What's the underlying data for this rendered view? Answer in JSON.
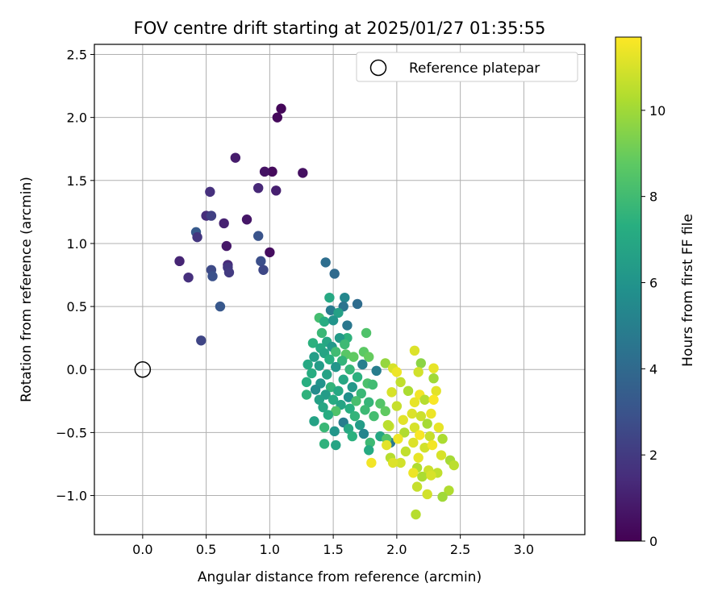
{
  "chart_data": {
    "type": "scatter",
    "title": "FOV centre drift starting at 2025/01/27 01:35:55",
    "xlabel": "Angular distance from reference (arcmin)",
    "ylabel": "Rotation from reference (arcmin)",
    "xlim": [
      -0.38,
      3.48
    ],
    "ylim": [
      -1.31,
      2.58
    ],
    "xticks": [
      "0.0",
      "0.5",
      "1.0",
      "1.5",
      "2.0",
      "2.5",
      "3.0"
    ],
    "yticks": [
      "−1.0",
      "−0.5",
      "0.0",
      "0.5",
      "1.0",
      "1.5",
      "2.0",
      "2.5"
    ],
    "grid": true,
    "legend": {
      "position": "top-right",
      "label": "Reference platepar"
    },
    "reference_point": {
      "x": 0.0,
      "y": 0.0
    },
    "colorbar": {
      "label": "Hours from first FF file",
      "range": [
        0,
        11.7
      ],
      "ticks": [
        "0",
        "2",
        "4",
        "6",
        "8",
        "10"
      ],
      "colormap": "viridis"
    },
    "points": [
      {
        "x": 1.09,
        "y": 2.07,
        "c": 0.2
      },
      {
        "x": 1.06,
        "y": 2.0,
        "c": 0.25
      },
      {
        "x": 1.02,
        "y": 1.57,
        "c": 0.3
      },
      {
        "x": 0.96,
        "y": 1.57,
        "c": 0.6
      },
      {
        "x": 1.26,
        "y": 1.56,
        "c": 0.5
      },
      {
        "x": 0.73,
        "y": 1.68,
        "c": 0.9
      },
      {
        "x": 0.91,
        "y": 1.44,
        "c": 1.3
      },
      {
        "x": 1.05,
        "y": 1.42,
        "c": 1.0
      },
      {
        "x": 0.53,
        "y": 1.41,
        "c": 1.6
      },
      {
        "x": 0.5,
        "y": 1.22,
        "c": 1.5
      },
      {
        "x": 0.54,
        "y": 1.22,
        "c": 2.2
      },
      {
        "x": 0.64,
        "y": 1.16,
        "c": 1.1
      },
      {
        "x": 0.82,
        "y": 1.19,
        "c": 0.7
      },
      {
        "x": 0.42,
        "y": 1.09,
        "c": 3.3
      },
      {
        "x": 0.43,
        "y": 1.05,
        "c": 1.8
      },
      {
        "x": 0.91,
        "y": 1.06,
        "c": 3.0
      },
      {
        "x": 0.66,
        "y": 0.98,
        "c": 0.8
      },
      {
        "x": 1.0,
        "y": 0.93,
        "c": 0.4
      },
      {
        "x": 0.29,
        "y": 0.86,
        "c": 1.2
      },
      {
        "x": 0.93,
        "y": 0.86,
        "c": 2.8
      },
      {
        "x": 0.67,
        "y": 0.83,
        "c": 1.4
      },
      {
        "x": 0.67,
        "y": 0.81,
        "c": 1.9
      },
      {
        "x": 0.54,
        "y": 0.79,
        "c": 2.6
      },
      {
        "x": 0.95,
        "y": 0.79,
        "c": 2.5
      },
      {
        "x": 0.68,
        "y": 0.77,
        "c": 2.0
      },
      {
        "x": 0.55,
        "y": 0.74,
        "c": 2.9
      },
      {
        "x": 0.36,
        "y": 0.73,
        "c": 1.6
      },
      {
        "x": 0.61,
        "y": 0.5,
        "c": 3.2
      },
      {
        "x": 0.46,
        "y": 0.23,
        "c": 2.4
      },
      {
        "x": 1.44,
        "y": 0.85,
        "c": 4.2
      },
      {
        "x": 1.51,
        "y": 0.76,
        "c": 4.0
      },
      {
        "x": 1.69,
        "y": 0.52,
        "c": 4.1
      },
      {
        "x": 1.47,
        "y": 0.57,
        "c": 7.0
      },
      {
        "x": 1.59,
        "y": 0.57,
        "c": 5.4
      },
      {
        "x": 1.58,
        "y": 0.5,
        "c": 4.5
      },
      {
        "x": 1.48,
        "y": 0.47,
        "c": 4.8
      },
      {
        "x": 1.54,
        "y": 0.45,
        "c": 6.6
      },
      {
        "x": 1.39,
        "y": 0.41,
        "c": 8.1
      },
      {
        "x": 1.43,
        "y": 0.38,
        "c": 7.2
      },
      {
        "x": 1.5,
        "y": 0.39,
        "c": 6.0
      },
      {
        "x": 1.61,
        "y": 0.35,
        "c": 4.6
      },
      {
        "x": 1.76,
        "y": 0.29,
        "c": 8.4
      },
      {
        "x": 1.41,
        "y": 0.29,
        "c": 7.8
      },
      {
        "x": 1.61,
        "y": 0.25,
        "c": 7.5
      },
      {
        "x": 1.55,
        "y": 0.25,
        "c": 6.3
      },
      {
        "x": 1.34,
        "y": 0.21,
        "c": 7.4
      },
      {
        "x": 1.45,
        "y": 0.22,
        "c": 6.9
      },
      {
        "x": 1.59,
        "y": 0.2,
        "c": 7.9
      },
      {
        "x": 1.49,
        "y": 0.18,
        "c": 6.2
      },
      {
        "x": 1.4,
        "y": 0.17,
        "c": 7.1
      },
      {
        "x": 1.52,
        "y": 0.14,
        "c": 8.0
      },
      {
        "x": 1.43,
        "y": 0.13,
        "c": 6.8
      },
      {
        "x": 1.74,
        "y": 0.14,
        "c": 8.7
      },
      {
        "x": 1.6,
        "y": 0.12,
        "c": 8.6
      },
      {
        "x": 1.66,
        "y": 0.1,
        "c": 8.8
      },
      {
        "x": 1.35,
        "y": 0.1,
        "c": 6.5
      },
      {
        "x": 1.47,
        "y": 0.08,
        "c": 7.3
      },
      {
        "x": 1.78,
        "y": 0.1,
        "c": 8.9
      },
      {
        "x": 1.57,
        "y": 0.07,
        "c": 7.6
      },
      {
        "x": 1.3,
        "y": 0.04,
        "c": 7.0
      },
      {
        "x": 1.39,
        "y": 0.03,
        "c": 6.4
      },
      {
        "x": 1.52,
        "y": 0.02,
        "c": 6.1
      },
      {
        "x": 1.73,
        "y": 0.04,
        "c": 5.0
      },
      {
        "x": 1.84,
        "y": -0.01,
        "c": 4.9
      },
      {
        "x": 1.63,
        "y": 0.0,
        "c": 7.7
      },
      {
        "x": 1.33,
        "y": -0.03,
        "c": 7.2
      },
      {
        "x": 1.45,
        "y": -0.04,
        "c": 6.7
      },
      {
        "x": 1.69,
        "y": -0.06,
        "c": 7.4
      },
      {
        "x": 1.58,
        "y": -0.08,
        "c": 6.9
      },
      {
        "x": 1.29,
        "y": -0.1,
        "c": 7.3
      },
      {
        "x": 1.4,
        "y": -0.11,
        "c": 6.0
      },
      {
        "x": 1.77,
        "y": -0.11,
        "c": 8.3
      },
      {
        "x": 1.81,
        "y": -0.12,
        "c": 8.0
      },
      {
        "x": 1.48,
        "y": -0.14,
        "c": 7.6
      },
      {
        "x": 1.65,
        "y": -0.14,
        "c": 6.2
      },
      {
        "x": 1.36,
        "y": -0.16,
        "c": 5.6
      },
      {
        "x": 1.54,
        "y": -0.17,
        "c": 7.0
      },
      {
        "x": 1.72,
        "y": -0.19,
        "c": 7.8
      },
      {
        "x": 1.29,
        "y": -0.2,
        "c": 7.5
      },
      {
        "x": 1.44,
        "y": -0.2,
        "c": 6.4
      },
      {
        "x": 1.62,
        "y": -0.22,
        "c": 5.8
      },
      {
        "x": 1.39,
        "y": -0.24,
        "c": 6.6
      },
      {
        "x": 1.5,
        "y": -0.24,
        "c": 7.1
      },
      {
        "x": 1.68,
        "y": -0.25,
        "c": 8.2
      },
      {
        "x": 1.78,
        "y": -0.26,
        "c": 7.7
      },
      {
        "x": 1.87,
        "y": -0.27,
        "c": 8.5
      },
      {
        "x": 1.56,
        "y": -0.28,
        "c": 6.8
      },
      {
        "x": 1.42,
        "y": -0.3,
        "c": 6.9
      },
      {
        "x": 1.63,
        "y": -0.31,
        "c": 7.3
      },
      {
        "x": 1.75,
        "y": -0.32,
        "c": 7.9
      },
      {
        "x": 1.52,
        "y": -0.33,
        "c": 8.4
      },
      {
        "x": 1.91,
        "y": -0.33,
        "c": 8.8
      },
      {
        "x": 1.46,
        "y": -0.36,
        "c": 7.2
      },
      {
        "x": 1.67,
        "y": -0.37,
        "c": 7.6
      },
      {
        "x": 1.82,
        "y": -0.37,
        "c": 8.1
      },
      {
        "x": 1.35,
        "y": -0.41,
        "c": 6.7
      },
      {
        "x": 1.58,
        "y": -0.42,
        "c": 4.9
      },
      {
        "x": 1.71,
        "y": -0.44,
        "c": 6.4
      },
      {
        "x": 1.43,
        "y": -0.46,
        "c": 7.8
      },
      {
        "x": 1.62,
        "y": -0.47,
        "c": 7.0
      },
      {
        "x": 1.94,
        "y": -0.45,
        "c": 10.8
      },
      {
        "x": 1.51,
        "y": -0.49,
        "c": 6.1
      },
      {
        "x": 1.74,
        "y": -0.51,
        "c": 5.3
      },
      {
        "x": 1.65,
        "y": -0.53,
        "c": 7.4
      },
      {
        "x": 1.87,
        "y": -0.53,
        "c": 6.9
      },
      {
        "x": 1.43,
        "y": -0.59,
        "c": 7.5
      },
      {
        "x": 1.52,
        "y": -0.6,
        "c": 6.8
      },
      {
        "x": 1.79,
        "y": -0.58,
        "c": 7.9
      },
      {
        "x": 1.95,
        "y": -0.58,
        "c": 4.7
      },
      {
        "x": 1.78,
        "y": -0.64,
        "c": 7.1
      },
      {
        "x": 1.92,
        "y": -0.55,
        "c": 8.5
      },
      {
        "x": 1.91,
        "y": 0.05,
        "c": 9.8
      },
      {
        "x": 1.97,
        "y": 0.01,
        "c": 11.0
      },
      {
        "x": 2.0,
        "y": -0.02,
        "c": 11.4
      },
      {
        "x": 2.14,
        "y": 0.15,
        "c": 11.1
      },
      {
        "x": 2.19,
        "y": 0.05,
        "c": 9.6
      },
      {
        "x": 2.17,
        "y": -0.02,
        "c": 10.9
      },
      {
        "x": 2.29,
        "y": 0.01,
        "c": 11.3
      },
      {
        "x": 2.29,
        "y": -0.07,
        "c": 10.0
      },
      {
        "x": 2.03,
        "y": -0.1,
        "c": 10.6
      },
      {
        "x": 2.31,
        "y": -0.17,
        "c": 11.2
      },
      {
        "x": 1.96,
        "y": -0.18,
        "c": 11.0
      },
      {
        "x": 2.09,
        "y": -0.17,
        "c": 10.2
      },
      {
        "x": 2.18,
        "y": -0.2,
        "c": 11.5
      },
      {
        "x": 2.22,
        "y": -0.24,
        "c": 10.4
      },
      {
        "x": 2.14,
        "y": -0.26,
        "c": 11.3
      },
      {
        "x": 2.29,
        "y": -0.24,
        "c": 11.6
      },
      {
        "x": 2.0,
        "y": -0.29,
        "c": 10.7
      },
      {
        "x": 2.12,
        "y": -0.35,
        "c": 11.1
      },
      {
        "x": 2.19,
        "y": -0.37,
        "c": 10.8
      },
      {
        "x": 2.27,
        "y": -0.35,
        "c": 11.4
      },
      {
        "x": 2.05,
        "y": -0.4,
        "c": 11.2
      },
      {
        "x": 1.93,
        "y": -0.44,
        "c": 10.5
      },
      {
        "x": 2.24,
        "y": -0.43,
        "c": 10.1
      },
      {
        "x": 2.14,
        "y": -0.46,
        "c": 11.0
      },
      {
        "x": 2.33,
        "y": -0.46,
        "c": 11.3
      },
      {
        "x": 2.06,
        "y": -0.5,
        "c": 10.3
      },
      {
        "x": 2.18,
        "y": -0.52,
        "c": 11.6
      },
      {
        "x": 2.26,
        "y": -0.53,
        "c": 10.7
      },
      {
        "x": 2.36,
        "y": -0.55,
        "c": 10.2
      },
      {
        "x": 2.01,
        "y": -0.55,
        "c": 11.4
      },
      {
        "x": 2.13,
        "y": -0.58,
        "c": 11.1
      },
      {
        "x": 2.22,
        "y": -0.62,
        "c": 10.9
      },
      {
        "x": 1.92,
        "y": -0.6,
        "c": 11.2
      },
      {
        "x": 2.28,
        "y": -0.6,
        "c": 11.5
      },
      {
        "x": 2.07,
        "y": -0.65,
        "c": 10.6
      },
      {
        "x": 2.35,
        "y": -0.68,
        "c": 11.0
      },
      {
        "x": 1.95,
        "y": -0.7,
        "c": 10.4
      },
      {
        "x": 2.17,
        "y": -0.7,
        "c": 11.3
      },
      {
        "x": 2.42,
        "y": -0.72,
        "c": 10.1
      },
      {
        "x": 2.03,
        "y": -0.74,
        "c": 10.9
      },
      {
        "x": 1.8,
        "y": -0.74,
        "c": 11.5
      },
      {
        "x": 2.45,
        "y": -0.76,
        "c": 10.5
      },
      {
        "x": 1.97,
        "y": -0.74,
        "c": 11.1
      },
      {
        "x": 2.16,
        "y": -0.78,
        "c": 10.3
      },
      {
        "x": 2.25,
        "y": -0.8,
        "c": 10.8
      },
      {
        "x": 2.13,
        "y": -0.82,
        "c": 11.4
      },
      {
        "x": 2.32,
        "y": -0.82,
        "c": 10.6
      },
      {
        "x": 2.2,
        "y": -0.85,
        "c": 10.2
      },
      {
        "x": 2.27,
        "y": -0.84,
        "c": 11.0
      },
      {
        "x": 2.16,
        "y": -0.93,
        "c": 10.7
      },
      {
        "x": 2.41,
        "y": -0.96,
        "c": 10.3
      },
      {
        "x": 2.24,
        "y": -0.99,
        "c": 10.9
      },
      {
        "x": 2.36,
        "y": -1.01,
        "c": 10.0
      },
      {
        "x": 2.15,
        "y": -1.15,
        "c": 10.4
      }
    ]
  }
}
